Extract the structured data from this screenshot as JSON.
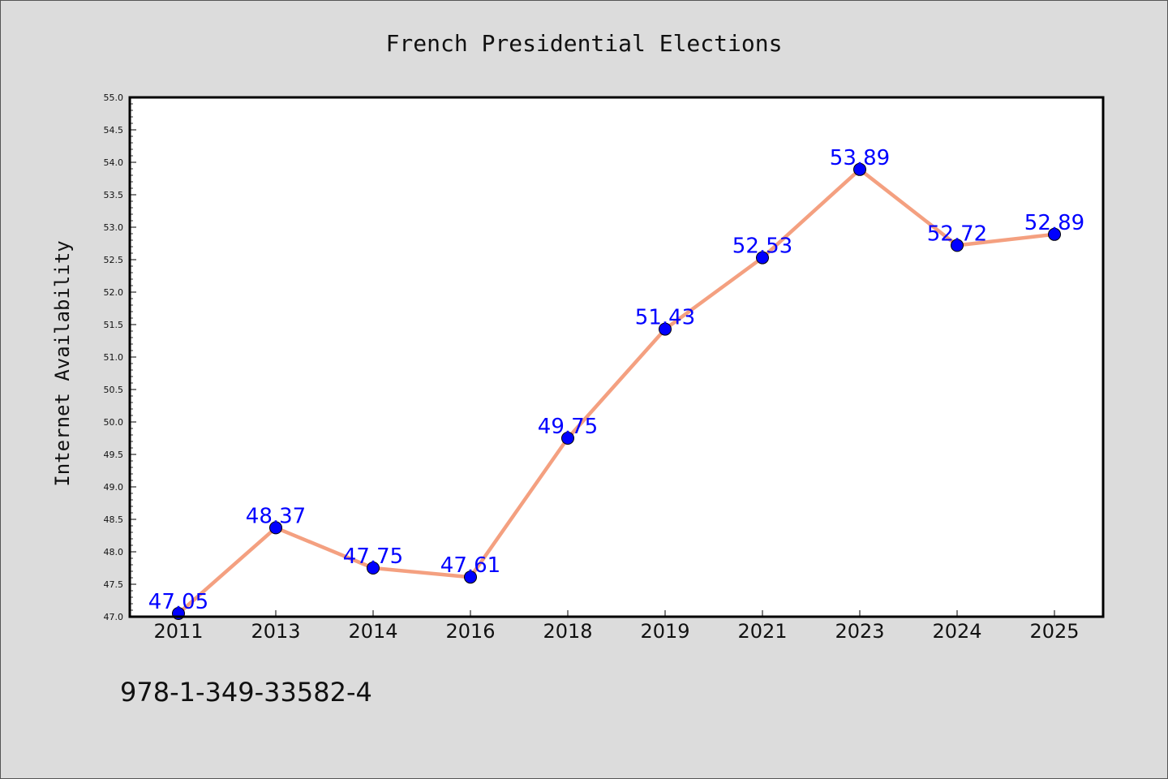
{
  "chart_data": {
    "type": "line",
    "title": "French Presidential Elections",
    "xlabel": "",
    "ylabel": "Internet Availability",
    "categories": [
      "2011",
      "2013",
      "2014",
      "2016",
      "2018",
      "2019",
      "2021",
      "2023",
      "2024",
      "2025"
    ],
    "values": [
      47.05,
      48.37,
      47.75,
      47.61,
      49.75,
      51.43,
      52.53,
      53.89,
      52.72,
      52.89
    ],
    "data_labels": [
      "47.05",
      "48.37",
      "47.75",
      "47.61",
      "49.75",
      "51.43",
      "52.53",
      "53.89",
      "52.72",
      "52.89"
    ],
    "ylim": [
      47.0,
      55.0
    ],
    "yticks": [
      "47.0",
      "47.5",
      "48.0",
      "48.5",
      "49.0",
      "49.5",
      "50.0",
      "50.5",
      "51.0",
      "51.5",
      "52.0",
      "52.5",
      "53.0",
      "53.5",
      "54.0",
      "54.5",
      "55.0"
    ],
    "grid": false,
    "legend": "none",
    "colors": {
      "line": "#f4a080",
      "marker": "#0000ff",
      "label": "#0000ff",
      "background": "#dcdcdc",
      "plot_background": "#ffffff"
    }
  },
  "footnote": "978-1-349-33582-4"
}
